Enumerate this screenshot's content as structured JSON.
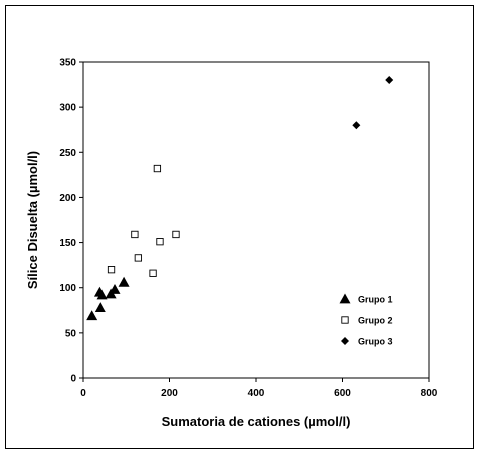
{
  "chart_data": {
    "type": "scatter",
    "xlabel": "Sumatoria de cationes (µmol/l)",
    "ylabel": "Sílice Disuelta (µmol/l)",
    "xlim": [
      0,
      800
    ],
    "ylim": [
      0,
      350
    ],
    "x_ticks": [
      0,
      200,
      400,
      600,
      800
    ],
    "y_ticks": [
      0,
      50,
      100,
      150,
      200,
      250,
      300,
      350
    ],
    "grid": false,
    "legend_position": "right",
    "series": [
      {
        "name": "Grupo 1",
        "marker": "triangle",
        "color": "#000000",
        "points": [
          [
            20,
            69
          ],
          [
            38,
            95
          ],
          [
            40,
            78
          ],
          [
            44,
            92
          ],
          [
            65,
            93
          ],
          [
            74,
            98
          ],
          [
            95,
            106
          ]
        ]
      },
      {
        "name": "Grupo 2",
        "marker": "square-open",
        "color": "#000000",
        "points": [
          [
            66,
            120
          ],
          [
            120,
            159
          ],
          [
            128,
            133
          ],
          [
            162,
            116
          ],
          [
            172,
            232
          ],
          [
            178,
            151
          ],
          [
            215,
            159
          ]
        ]
      },
      {
        "name": "Grupo 3",
        "marker": "diamond",
        "color": "#000000",
        "points": [
          [
            632,
            280
          ],
          [
            708,
            330
          ]
        ]
      }
    ]
  }
}
